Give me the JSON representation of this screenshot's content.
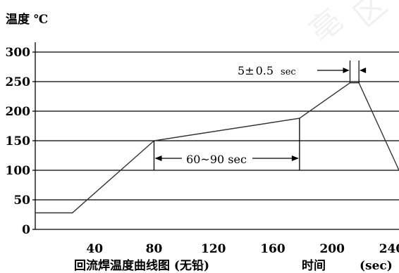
{
  "chart_data": {
    "type": "line",
    "ylabel": "温度 ℃",
    "xlabel": "回流焊温度曲线图 (无铅)",
    "x_axis_name": "时间",
    "x_unit": "(sec)",
    "xlim": [
      0,
      245
    ],
    "ylim": [
      0,
      310
    ],
    "x_ticks": [
      "40",
      "80",
      "120",
      "160",
      "200",
      "240"
    ],
    "y_ticks": [
      "0",
      "50",
      "100",
      "150",
      "200",
      "250",
      "300"
    ],
    "grid": "horizontal",
    "series": [
      {
        "x": [
          0,
          25,
          80,
          178,
          212,
          218,
          245
        ],
        "y": [
          28,
          28,
          150,
          188,
          248,
          248,
          100
        ]
      }
    ],
    "annotations": {
      "window": "60~90 sec",
      "peak": "5",
      "peak_pm": "±",
      "peak_tol": "0.5",
      "peak_unit": "sec"
    }
  }
}
